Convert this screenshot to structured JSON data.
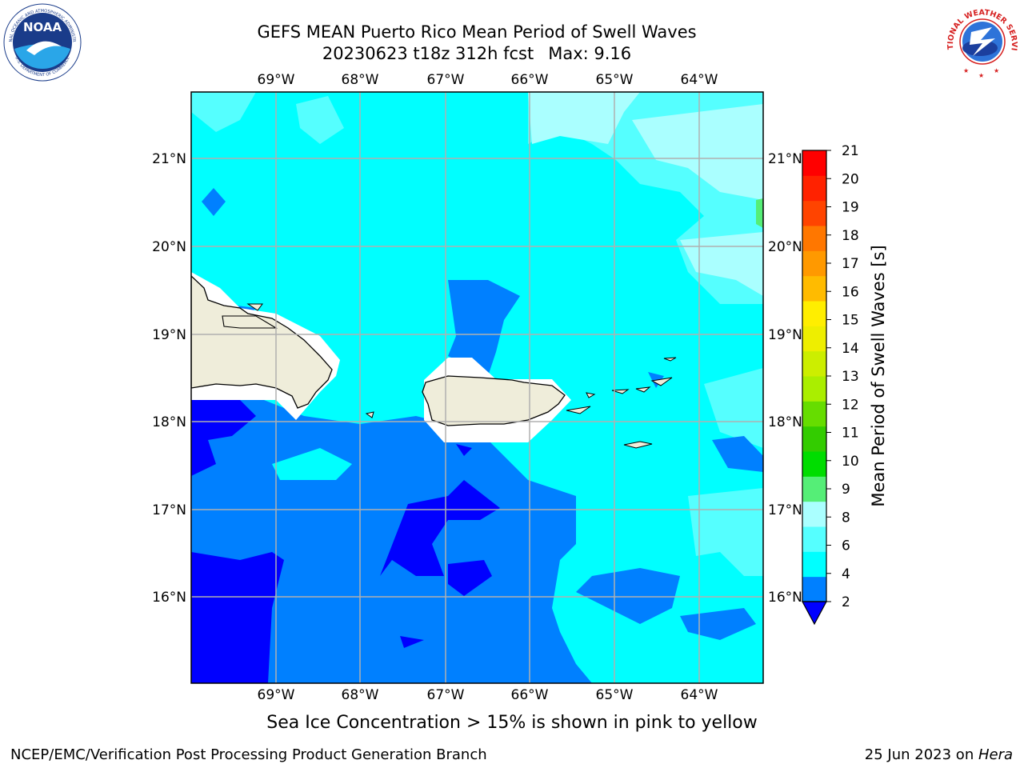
{
  "title": {
    "line1": "GEFS MEAN Puerto Rico Mean Period of Swell Waves",
    "date_line": "20230623 t18z 312h fcst",
    "max_line": "Max: 9.16"
  },
  "map": {
    "lon_labels": [
      "69°W",
      "68°W",
      "67°W",
      "66°W",
      "65°W",
      "64°W"
    ],
    "lat_labels": [
      "21°N",
      "20°N",
      "19°N",
      "18°N",
      "17°N",
      "16°N"
    ],
    "ocean_colors": {
      "2-4": "#0000ff",
      "4-6": "#0080ff",
      "6-8": "#00ffff",
      "8-9": "#55ffff",
      "9-10": "#aaffff",
      "land": "#efedda",
      "grid": "#b0b0b0"
    }
  },
  "colorbar": {
    "label": "Mean Period of Swell Waves [s]",
    "ticks": [
      "2",
      "4",
      "6",
      "8",
      "9",
      "10",
      "11",
      "12",
      "13",
      "14",
      "15",
      "16",
      "17",
      "18",
      "19",
      "20",
      "21"
    ],
    "colors": [
      "#0080ff",
      "#00ffff",
      "#55ffff",
      "#aaffff",
      "#55ee77",
      "#00dd00",
      "#33cc00",
      "#66dd00",
      "#aaee00",
      "#ccee00",
      "#eeee00",
      "#ffee00",
      "#ffbb00",
      "#ff9900",
      "#ff7700",
      "#ff4400",
      "#ff2200",
      "#ff0000"
    ],
    "under_color": "#0000ff"
  },
  "note": "Sea Ice Concentration > 15% is shown in pink to yellow",
  "footer": {
    "left": "NCEP/EMC/Verification Post Processing Product Generation Branch",
    "date": "25 Jun 2023 on ",
    "host": "Hera"
  },
  "logos": {
    "noaa_text": "NOAA",
    "nws_text": "NATIONAL WEATHER SERVICE",
    "noaa_ring_top": "NATIONAL OCEANIC AND ATMOSPHERIC ADMINISTRATION",
    "noaa_ring_bottom": "U.S. DEPARTMENT OF COMMERCE"
  }
}
